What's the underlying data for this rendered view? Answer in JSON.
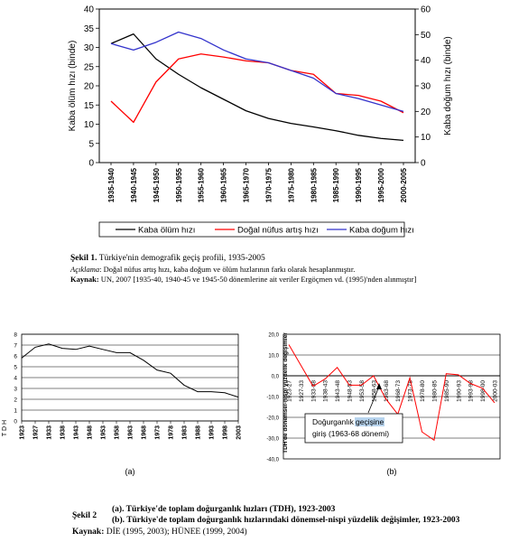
{
  "chart_data": [
    {
      "type": "line",
      "categories": [
        "1935-1940",
        "1940-1945",
        "1945-1950",
        "1950-1955",
        "1955-1960",
        "1960-1965",
        "1965-1970",
        "1970-1975",
        "1975-1980",
        "1980-1985",
        "1985-1990",
        "1990-1995",
        "1995-2000",
        "2000-2005"
      ],
      "ylabel": "Kaba ölüm hızı (binde)",
      "y2label": "Kaba doğum hızı (binde)",
      "ylim": [
        0,
        40
      ],
      "y2lim": [
        0,
        60
      ],
      "yticks": [
        "0",
        "5",
        "10",
        "15",
        "20",
        "25",
        "30",
        "35",
        "40"
      ],
      "y2ticks": [
        "0",
        "10",
        "20",
        "30",
        "40",
        "50",
        "60"
      ],
      "legend_position": "bottom",
      "series": [
        {
          "name": "Kaba ölüm hızı",
          "color": "#000000",
          "axis": "left",
          "values": [
            31.0,
            33.5,
            27.0,
            23.0,
            19.5,
            16.5,
            13.5,
            11.5,
            10.2,
            9.3,
            8.3,
            7.1,
            6.3,
            5.8
          ]
        },
        {
          "name": "Doğal nüfus artış hızı",
          "color": "#ff0000",
          "axis": "left",
          "values": [
            16.0,
            10.5,
            21.0,
            27.0,
            28.3,
            27.5,
            26.5,
            26.0,
            24.0,
            23.0,
            18.0,
            17.5,
            16.0,
            13.0
          ]
        },
        {
          "name": "Kaba doğum hızı",
          "color": "#3333cc",
          "axis": "right",
          "values": [
            46.5,
            44.0,
            47.0,
            51.0,
            48.5,
            44.0,
            40.5,
            39.0,
            36.0,
            33.0,
            27.0,
            25.0,
            22.5,
            20.0
          ]
        }
      ]
    },
    {
      "type": "line",
      "categories": [
        "1923",
        "1927",
        "1933",
        "1938",
        "1943",
        "1948",
        "1953",
        "1958",
        "1963",
        "1968",
        "1973",
        "1978",
        "1983",
        "1988",
        "1993",
        "1998",
        "2003"
      ],
      "ylabel": "T D H",
      "ylim": [
        0,
        8
      ],
      "yticks": [
        "0",
        "1",
        "2",
        "3",
        "4",
        "5",
        "6",
        "7",
        "8"
      ],
      "panel_label": "(a)",
      "series": [
        {
          "name": "",
          "color": "#000000",
          "values": [
            5.8,
            6.8,
            7.1,
            6.7,
            6.6,
            6.9,
            6.6,
            6.3,
            6.3,
            5.6,
            4.7,
            4.4,
            3.3,
            2.7,
            2.7,
            2.6,
            2.2
          ]
        }
      ]
    },
    {
      "type": "line",
      "categories": [
        "1923-27",
        "1927-33",
        "1933-38",
        "1938-43",
        "1943-48",
        "1948-53",
        "1953-58",
        "1958-63",
        "1963-68",
        "1968-73",
        "1973-78",
        "1978-80",
        "1980-85",
        "1985-90",
        "1990-93",
        "1993-98",
        "1998-00",
        "2000-03"
      ],
      "ylabel": "TDH'de dönemsel-nispi yüzdelik değişimler",
      "ylim": [
        -40,
        20
      ],
      "yticks": [
        "20,0",
        "10,0",
        "0,0",
        "-10,0",
        "-20,0",
        "-30,0",
        "-40,0"
      ],
      "panel_label": "(b)",
      "annotation": {
        "line1_before": "Doğurganlık",
        "line1_highlight": "geçişine",
        "line2": "giriş (1963-68 dönemi)"
      },
      "series": [
        {
          "name": "",
          "color": "#ff0000",
          "values": [
            15.0,
            5.0,
            -5.0,
            -1.5,
            4.0,
            -4.5,
            -4.5,
            0.0,
            -11.0,
            -18.5,
            -1.0,
            -27.0,
            -31.0,
            1.0,
            0.5,
            -3.7,
            -6.0,
            -13.0
          ]
        }
      ]
    }
  ],
  "caption1": {
    "label": "Şekil 1.",
    "text": " Türkiye'nin demografik geçiş profili, 1935-2005",
    "note_label": "Açıklama",
    "note_text": ": Doğal nüfus artış hızı, kaba doğum ve ölüm hızlarının farkı olarak hesaplanmıştır.",
    "source_label": "Kaynak:",
    "source_text": " UN, 2007 [1935-40, 1940-45 ve 1945-50 dönemlerine ait veriler Ergöçmen vd. (1995)'nden alınmıştır]"
  },
  "caption2": {
    "label": "Şekil 2",
    "line_a": "(a). Türkiye'de toplam doğurganlık hızları (TDH), 1923-2003",
    "line_b": "(b). Türkiye'de toplam doğurganlık hızlarındaki dönemsel-nispi yüzdelik değişimler, 1923-2003",
    "source_label": "Kaynak:",
    "source_text": " DİE (1995, 2003); HÜNEE (1999, 2004)"
  }
}
